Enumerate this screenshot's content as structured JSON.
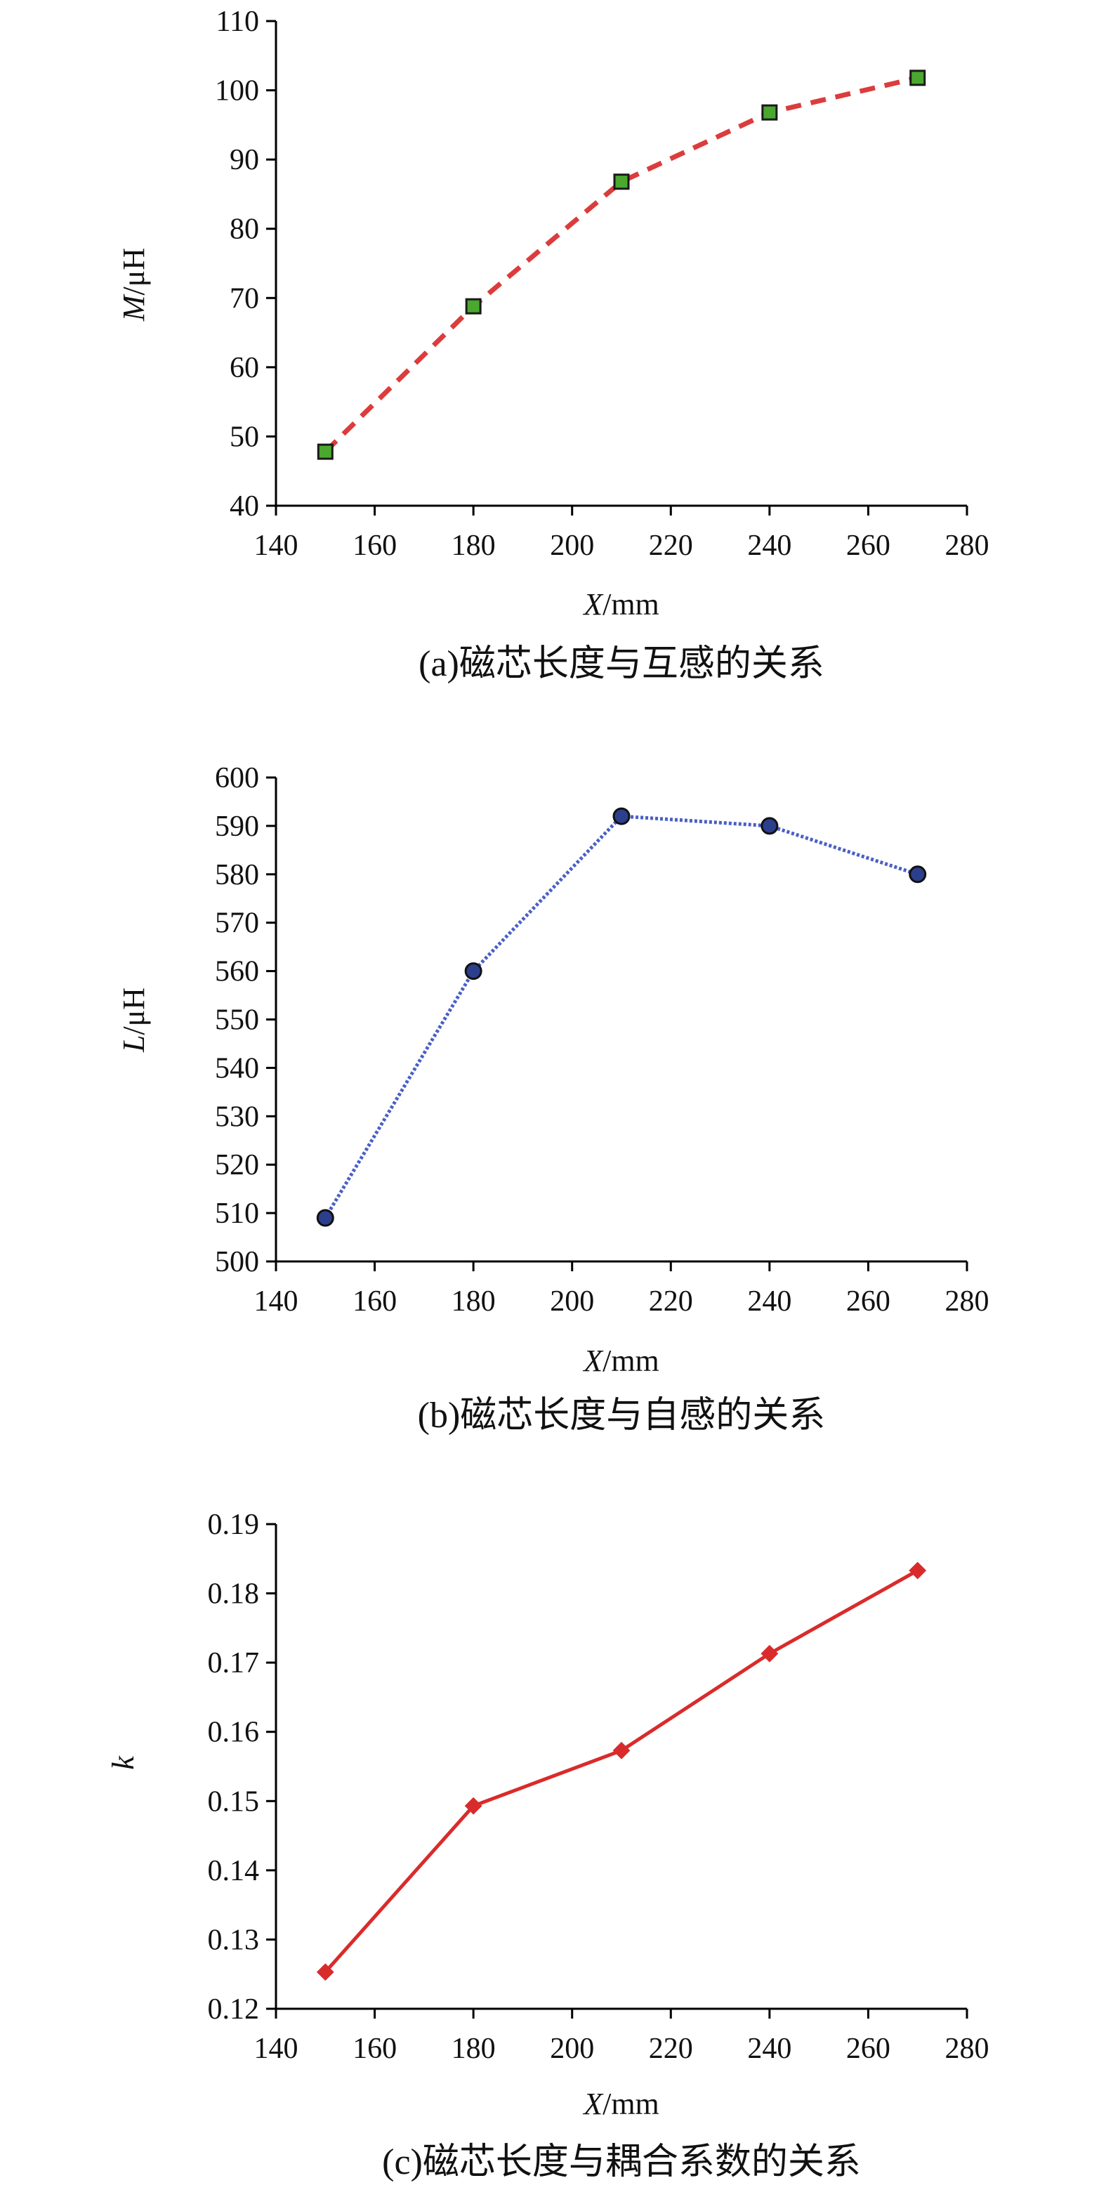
{
  "chart_data": [
    {
      "type": "line",
      "title": "",
      "caption": "(a)磁芯长度与互感的关系",
      "xlabel": {
        "var": "X",
        "unit": "/mm"
      },
      "ylabel": {
        "var": "M",
        "unit": "/μH"
      },
      "xlim": [
        140,
        280
      ],
      "ylim": [
        40,
        110
      ],
      "xticks": [
        "140",
        "160",
        "180",
        "200",
        "220",
        "240",
        "260",
        "280"
      ],
      "yticks": [
        "40",
        "50",
        "60",
        "70",
        "80",
        "90",
        "100",
        "110"
      ],
      "grid": false,
      "series": [
        {
          "x": [
            150,
            180,
            210,
            240,
            270
          ],
          "values": [
            47.8,
            68.8,
            86.8,
            96.8,
            101.8
          ],
          "line_style": "dashed",
          "line_color": "#dc3c3c",
          "marker": "square",
          "marker_fill": "#4aa82e",
          "marker_edge": "#1a1a1a"
        }
      ]
    },
    {
      "type": "line",
      "title": "",
      "caption": "(b)磁芯长度与自感的关系",
      "xlabel": {
        "var": "X",
        "unit": "/mm"
      },
      "ylabel": {
        "var": "L",
        "unit": "/μH"
      },
      "xlim": [
        140,
        280
      ],
      "ylim": [
        500,
        600
      ],
      "xticks": [
        "140",
        "160",
        "180",
        "200",
        "220",
        "240",
        "260",
        "280"
      ],
      "yticks": [
        "500",
        "510",
        "520",
        "530",
        "540",
        "550",
        "560",
        "570",
        "580",
        "590",
        "600"
      ],
      "grid": false,
      "series": [
        {
          "x": [
            150,
            180,
            210,
            240,
            270
          ],
          "values": [
            509,
            560,
            592,
            590,
            580
          ],
          "line_style": "dotted",
          "line_color": "#4a5fc4",
          "marker": "circle",
          "marker_fill": "#2c3f8c",
          "marker_edge": "#111111"
        }
      ]
    },
    {
      "type": "line",
      "title": "",
      "caption": "(c)磁芯长度与耦合系数的关系",
      "xlabel": {
        "var": "X",
        "unit": "/mm"
      },
      "ylabel": {
        "var": "k",
        "unit": ""
      },
      "xlim": [
        140,
        280
      ],
      "ylim": [
        0.12,
        0.19
      ],
      "xticks": [
        "140",
        "160",
        "180",
        "200",
        "220",
        "240",
        "260",
        "280"
      ],
      "yticks": [
        "0.12",
        "0.13",
        "0.14",
        "0.15",
        "0.16",
        "0.17",
        "0.18",
        "0.19"
      ],
      "grid": false,
      "series": [
        {
          "x": [
            150,
            180,
            210,
            240,
            270
          ],
          "values": [
            0.1253,
            0.1493,
            0.1573,
            0.1713,
            0.1833
          ],
          "line_style": "solid",
          "line_color": "#d92b2b",
          "marker": "diamond",
          "marker_fill": "#d92b2b",
          "marker_edge": "#d92b2b"
        }
      ]
    }
  ]
}
